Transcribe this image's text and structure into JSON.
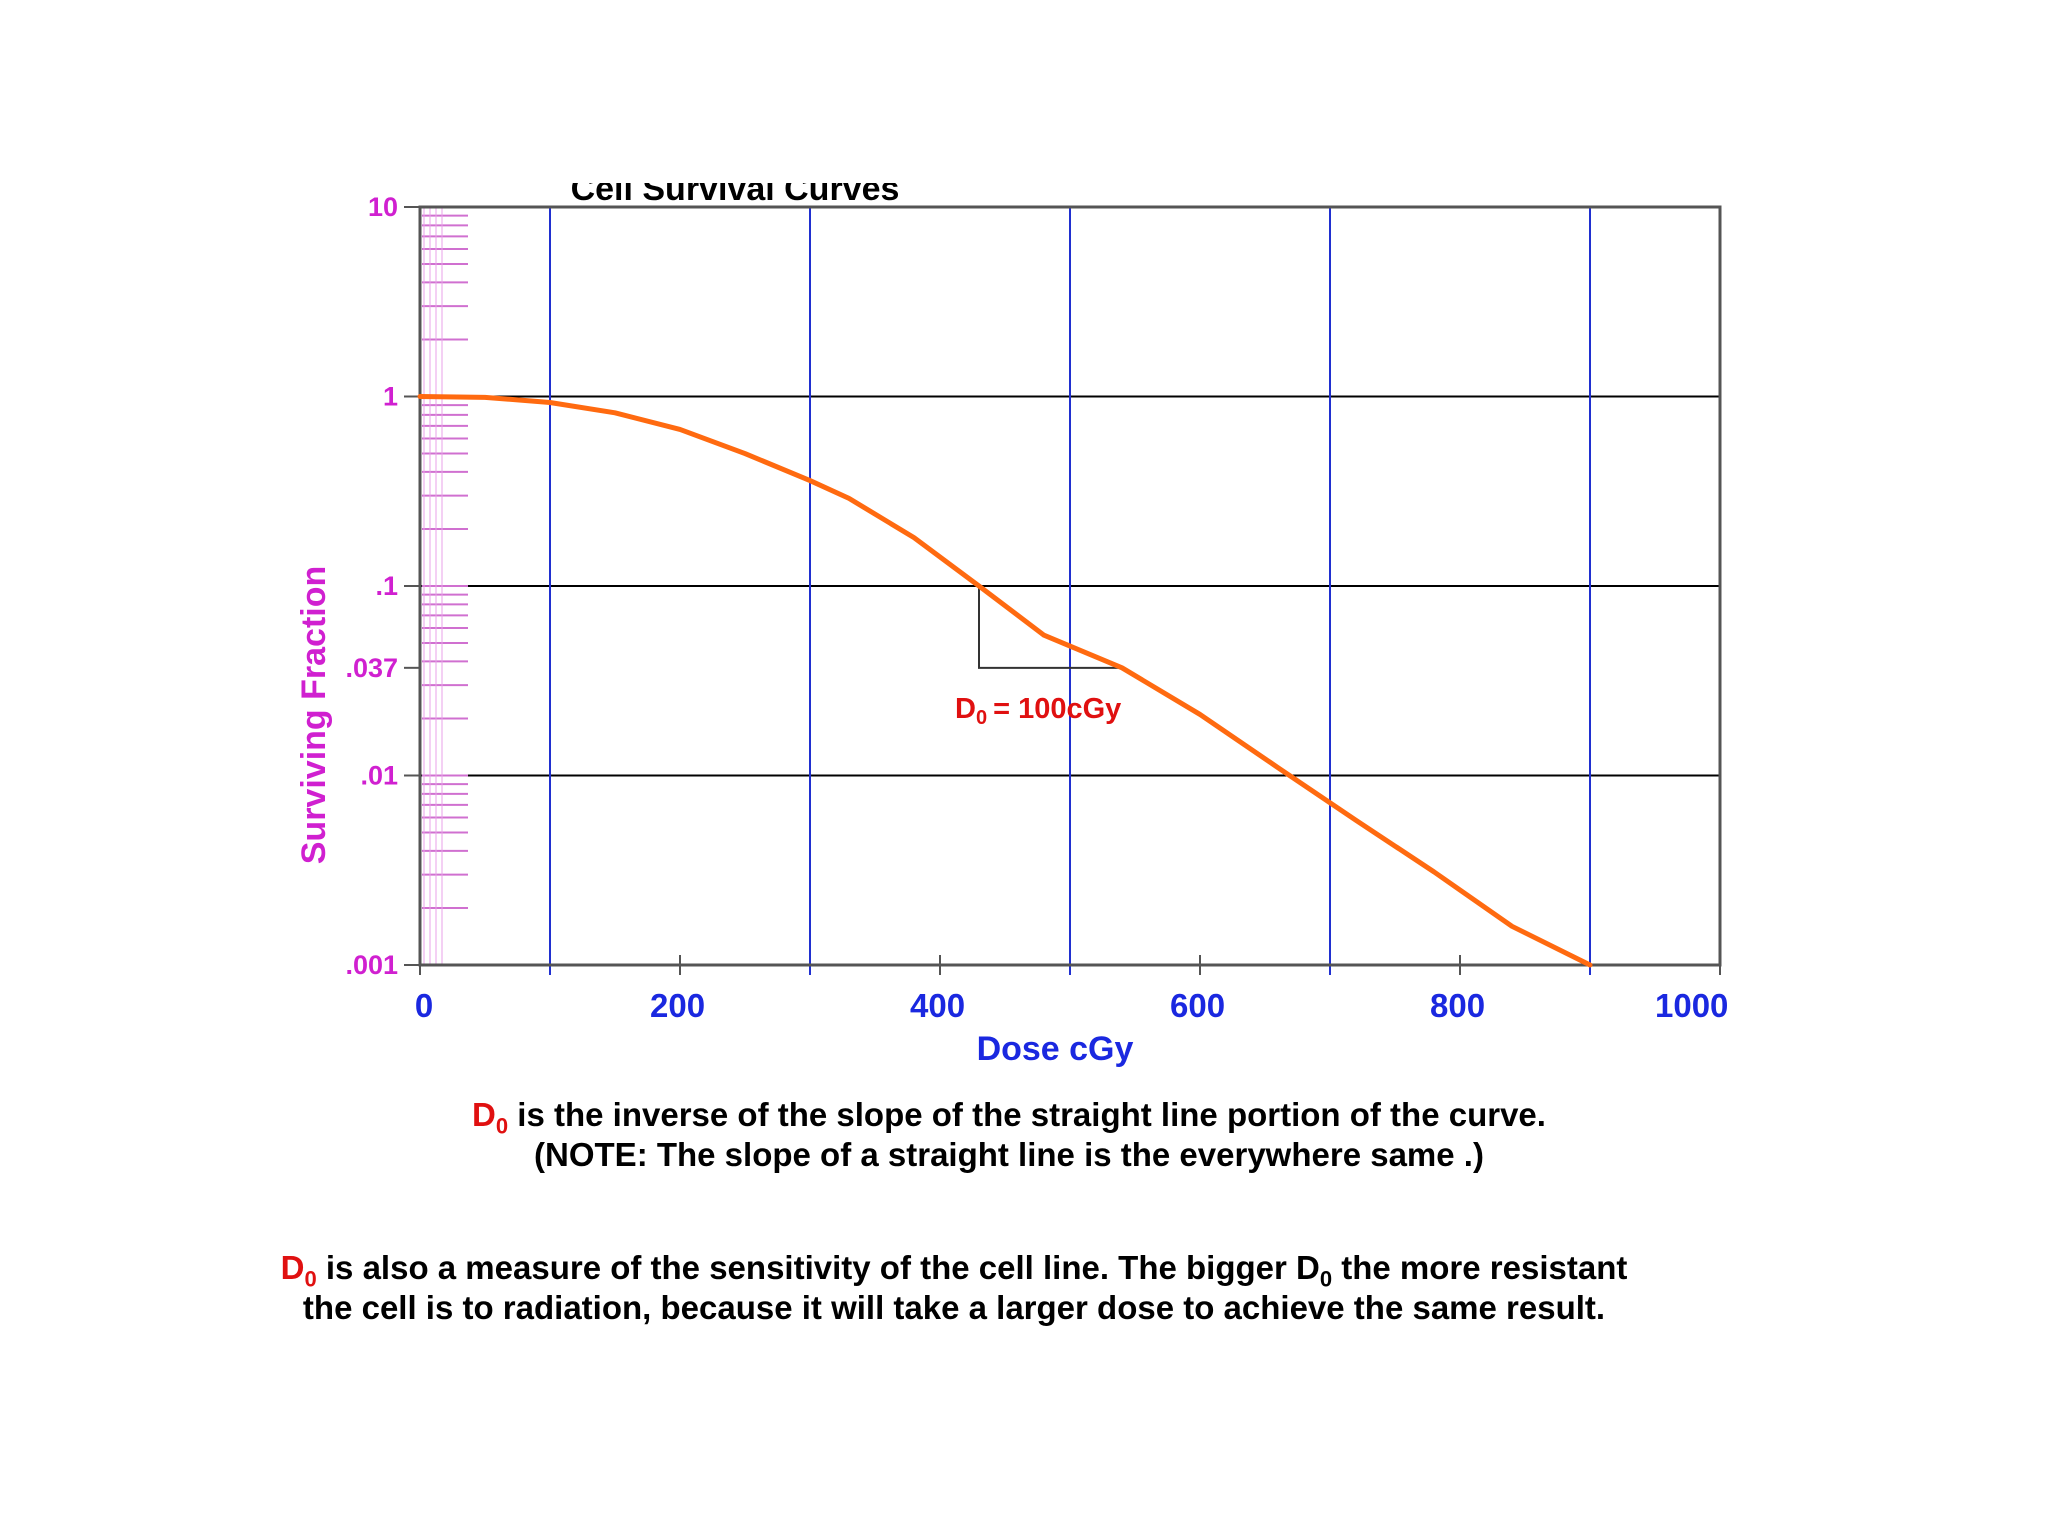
{
  "chart_data": {
    "type": "line",
    "title": "Cell Survival Curves",
    "xlabel": "Dose cGy",
    "ylabel": "Surviving Fraction",
    "xlim": [
      0,
      1000
    ],
    "ylim": [
      0.001,
      10
    ],
    "y_scale": "log",
    "x_ticks": [
      {
        "value": 0,
        "label": "0"
      },
      {
        "value": 200,
        "label": "200"
      },
      {
        "value": 400,
        "label": "400"
      },
      {
        "value": 600,
        "label": "600"
      },
      {
        "value": 800,
        "label": "800"
      },
      {
        "value": 1000,
        "label": "1000"
      }
    ],
    "y_ticks": [
      {
        "value": 10,
        "label": "10"
      },
      {
        "value": 1,
        "label": "1"
      },
      {
        "value": 0.1,
        "label": ".1"
      },
      {
        "value": 0.037,
        "label": ".037"
      },
      {
        "value": 0.01,
        "label": ".01"
      },
      {
        "value": 0.001,
        "label": ".001"
      }
    ],
    "vertical_gridlines": [
      100,
      300,
      500,
      700,
      900
    ],
    "series": [
      {
        "color": "#ff6a10",
        "x": [
          0,
          50,
          100,
          150,
          200,
          250,
          300,
          330,
          380,
          430,
          480,
          540,
          600,
          660,
          720,
          780,
          840,
          900
        ],
        "y": [
          1.0,
          0.99,
          0.93,
          0.82,
          0.67,
          0.5,
          0.36,
          0.29,
          0.18,
          0.1,
          0.055,
          0.037,
          0.021,
          0.011,
          0.0058,
          0.0031,
          0.0016,
          0.001
        ]
      }
    ],
    "d0_triangle": {
      "x0": 430,
      "x1": 540,
      "y0": 0.1,
      "y1": 0.037
    },
    "annotation": {
      "text": "= 100cGy",
      "symbol": "D",
      "subscript": "0",
      "x": 480,
      "y": 0.018
    },
    "colors": {
      "curve": "#ff6a10",
      "vgrid": "#2030d0",
      "hgrid": "#000000",
      "ytick": "#d020d0",
      "xtick": "#1a28e0",
      "annotation": "#e01010"
    }
  },
  "notes": {
    "line1_symbol": "D",
    "line1_sub": "0",
    "line1_text": " is the inverse of the slope of the straight line portion of the curve.",
    "line2_text": "(NOTE: The slope of a straight line is the everywhere same .)",
    "line3_symbol": "D",
    "line3_sub": "0",
    "line3_text_a": " is also a measure of the sensitivity of the cell line. The bigger D",
    "line3_sub2": "0",
    "line3_text_b": " the more resistant",
    "line4_text": "the cell is to radiation, because it will take a larger dose to achieve the same result."
  }
}
